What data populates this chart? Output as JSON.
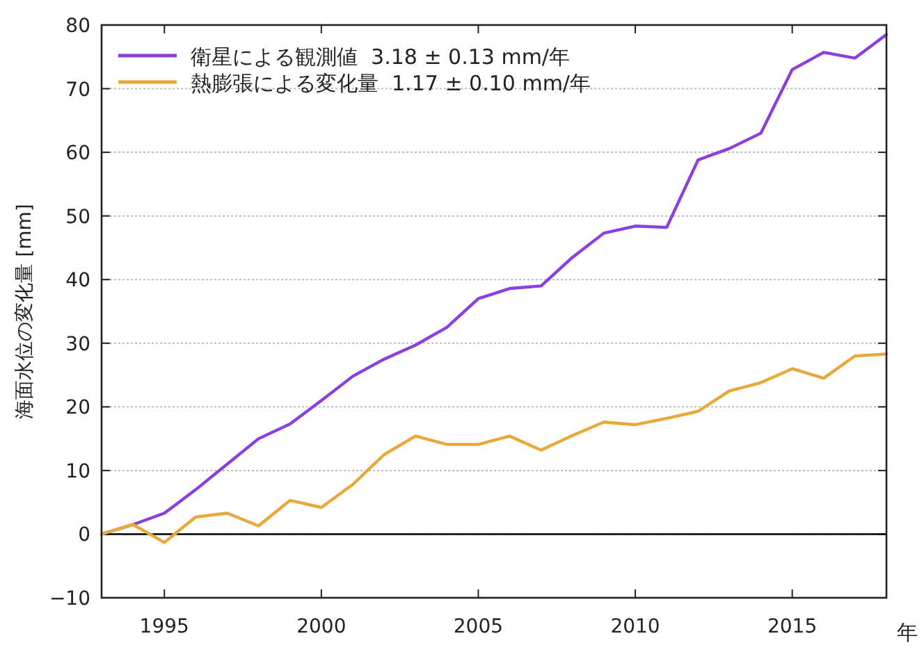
{
  "chart_data": {
    "type": "line",
    "xlabel": "年",
    "ylabel": "海面水位の変化量 [mm]",
    "x": [
      1993,
      1994,
      1995,
      1996,
      1997,
      1998,
      1999,
      2000,
      2001,
      2002,
      2003,
      2004,
      2005,
      2006,
      2007,
      2008,
      2009,
      2010,
      2011,
      2012,
      2013,
      2014,
      2015,
      2016,
      2017,
      2018
    ],
    "series": [
      {
        "name": "衛星による観測値  3.18 ± 0.13 mm/年",
        "color": "#8a3fe0",
        "values": [
          0,
          1.5,
          3.3,
          7,
          11,
          15,
          17.3,
          21,
          24.8,
          27.5,
          29.7,
          32.5,
          37,
          38.6,
          39,
          43.5,
          47.3,
          48.4,
          48.2,
          58.8,
          60.6,
          63,
          73,
          75.7,
          74.8,
          78.5
        ]
      },
      {
        "name": "熱膨張による変化量  1.17 ± 0.10 mm/年",
        "color": "#e8a83a",
        "values": [
          0,
          1.5,
          -1.3,
          2.7,
          3.3,
          1.3,
          5.3,
          4.2,
          7.8,
          12.5,
          15.4,
          14.1,
          14.1,
          15.4,
          13.2,
          15.5,
          17.6,
          17.2,
          18.2,
          19.3,
          22.5,
          23.8,
          26,
          24.5,
          28,
          28.3
        ]
      }
    ],
    "xlim": [
      1993,
      2018
    ],
    "xticks": [
      1995,
      2000,
      2005,
      2010,
      2015
    ],
    "ylim": [
      -10,
      80
    ],
    "yticks": [
      -10,
      0,
      10,
      20,
      30,
      40,
      50,
      60,
      70,
      80
    ],
    "ref_lines": [
      {
        "axis": "y",
        "value": 0,
        "color": "#000000"
      }
    ],
    "grid": "y",
    "legend": "top left",
    "marker": "none",
    "line_style": "solid"
  }
}
